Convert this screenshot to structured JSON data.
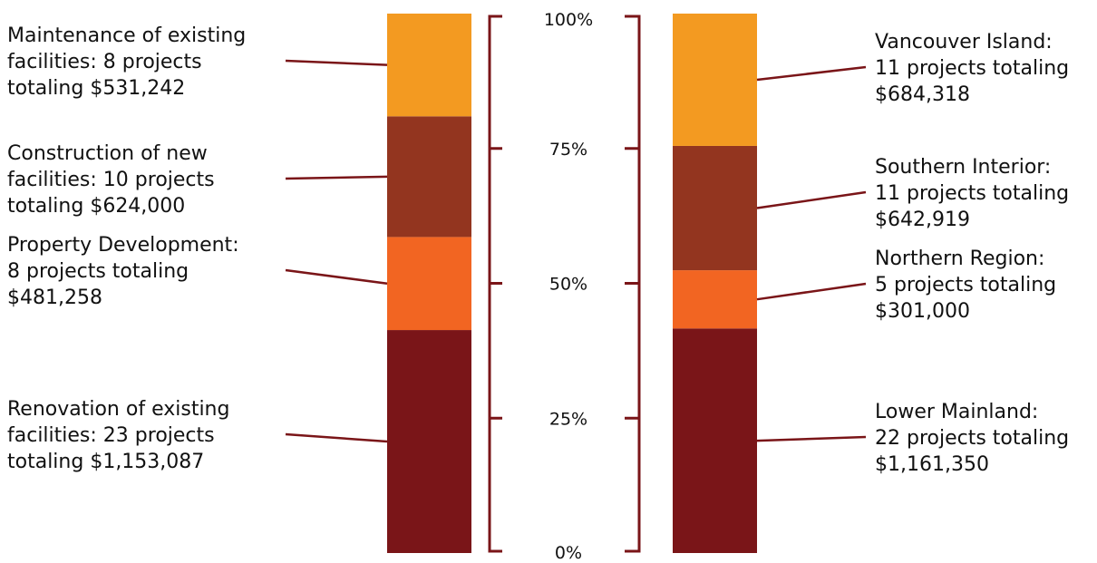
{
  "chart_data": {
    "type": "bar",
    "stacked": true,
    "y_ticks": [
      "0%",
      "25%",
      "50%",
      "75%",
      "100%"
    ],
    "ylim": [
      0,
      100
    ],
    "colors": {
      "accent_lines": "#7a1518",
      "dark_red": "#7a1518",
      "orange": "#f26522",
      "brown": "#93351f",
      "light_orange": "#f39a21"
    },
    "left_bar": {
      "segments": [
        {
          "value": 1153087,
          "color": "#7a1518",
          "label": [
            "Renovation of existing",
            "facilities: 23 projects",
            "totaling $1,153,087"
          ]
        },
        {
          "value": 481258,
          "color": "#f26522",
          "label": [
            "Property Development:",
            "8 projects totaling",
            "$481,258"
          ]
        },
        {
          "value": 624000,
          "color": "#93351f",
          "label": [
            "Construction of new",
            "facilities: 10 projects",
            "totaling $624,000"
          ]
        },
        {
          "value": 531242,
          "color": "#f39a21",
          "label": [
            "Maintenance of existing",
            "facilities: 8 projects",
            "totaling $531,242"
          ]
        }
      ]
    },
    "right_bar": {
      "segments": [
        {
          "value": 1161350,
          "color": "#7a1518",
          "label": [
            "Lower Mainland:",
            "22 projects totaling",
            "$1,161,350"
          ]
        },
        {
          "value": 301000,
          "color": "#f26522",
          "label": [
            "Northern Region:",
            "5 projects totaling",
            "$301,000"
          ]
        },
        {
          "value": 642919,
          "color": "#93351f",
          "label": [
            "Southern Interior:",
            "11 projects totaling",
            "$642,919"
          ]
        },
        {
          "value": 684318,
          "color": "#f39a21",
          "label": [
            "Vancouver Island:",
            "11 projects totaling",
            "$684,318"
          ]
        }
      ]
    }
  }
}
